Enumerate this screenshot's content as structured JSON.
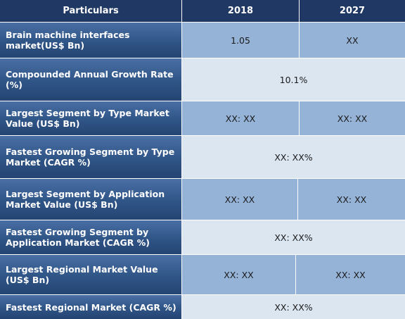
{
  "header": {
    "particulars": "Particulars",
    "year1": "2018",
    "year2": "2027"
  },
  "rows": [
    {
      "label": "Brain machine interfaces market(US$ Bn)",
      "v2018": "1.05",
      "v2027": "XX"
    },
    {
      "label": "Compounded Annual Growth Rate (%)",
      "merged": "10.1%"
    },
    {
      "label": "Largest Segment by Type Market Value (US$ Bn)",
      "v2018": "XX: XX",
      "v2027": "XX: XX"
    },
    {
      "label": "Fastest Growing Segment by Type Market (CAGR %)",
      "merged": "XX: XX%"
    },
    {
      "label": "Largest Segment by Application Market Value (US$ Bn)",
      "v2018": "XX: XX",
      "v2027": "XX: XX"
    },
    {
      "label": "Fastest Growing Segment by Application Market (CAGR %)",
      "merged": "XX: XX%"
    },
    {
      "label": "Largest Regional Market Value (US$ Bn)",
      "v2018": "XX: XX",
      "v2027": "XX: XX"
    },
    {
      "label": "Fastest Regional Market (CAGR %)",
      "merged": "XX: XX%"
    }
  ]
}
